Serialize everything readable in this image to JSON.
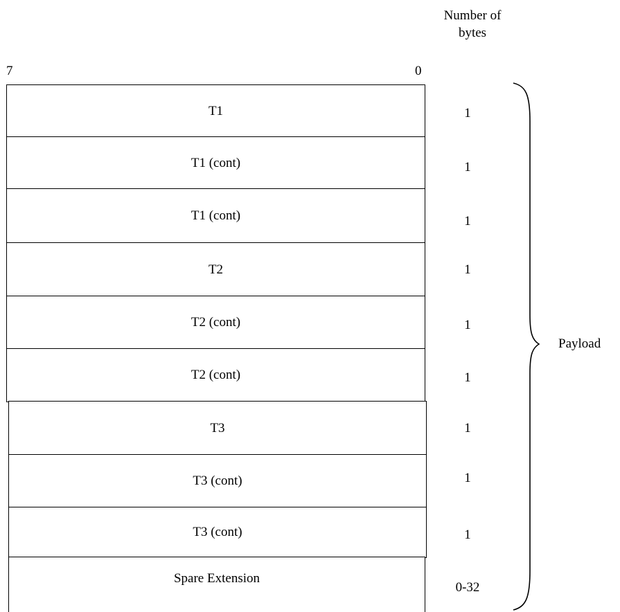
{
  "header": {
    "bytes_label_line1": "Number of",
    "bytes_label_line2": "bytes"
  },
  "bits": {
    "high": "7",
    "low": "0"
  },
  "rows": [
    {
      "label": "T1",
      "bytes": "1"
    },
    {
      "label": "T1 (cont)",
      "bytes": "1"
    },
    {
      "label": "T1 (cont)",
      "bytes": "1"
    },
    {
      "label": "T2",
      "bytes": "1"
    },
    {
      "label": "T2 (cont)",
      "bytes": "1"
    },
    {
      "label": "T2 (cont)",
      "bytes": "1"
    },
    {
      "label": "T3",
      "bytes": "1"
    },
    {
      "label": "T3 (cont)",
      "bytes": "1"
    },
    {
      "label": "T3 (cont)",
      "bytes": "1"
    },
    {
      "label": "Spare Extension",
      "bytes": "0-32"
    }
  ],
  "brace": {
    "label": "Payload"
  }
}
